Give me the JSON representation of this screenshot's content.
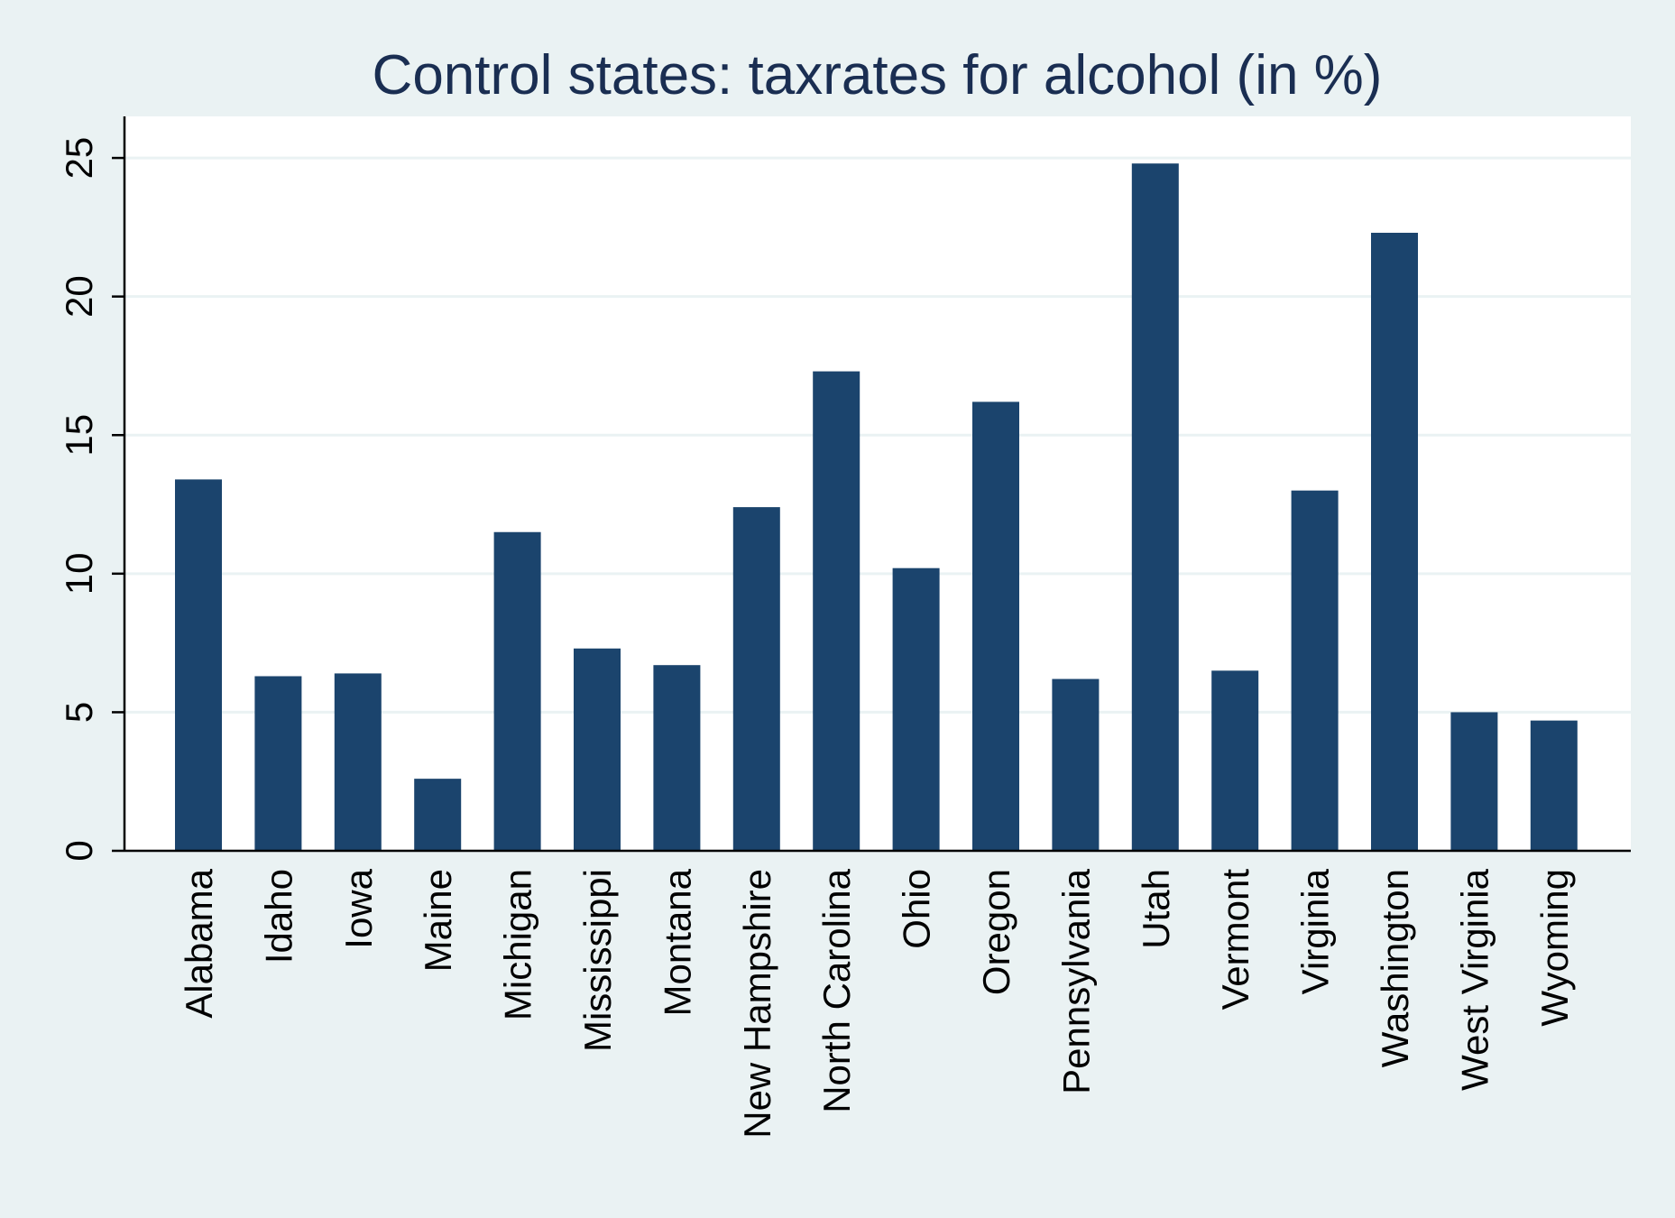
{
  "chart_data": {
    "type": "bar",
    "title": "Control states: taxrates for alcohol (in %)",
    "xlabel": "",
    "ylabel": "",
    "categories": [
      "Alabama",
      "Idaho",
      "Iowa",
      "Maine",
      "Michigan",
      "Mississippi",
      "Montana",
      "New Hampshire",
      "North Carolina",
      "Ohio",
      "Oregon",
      "Pennsylvania",
      "Utah",
      "Vermont",
      "Virginia",
      "Washington",
      "West Virginia",
      "Wyoming"
    ],
    "values": [
      13.4,
      6.3,
      6.4,
      2.6,
      11.5,
      7.3,
      6.7,
      12.4,
      17.3,
      10.2,
      16.2,
      6.2,
      24.8,
      6.5,
      13.0,
      22.3,
      5.0,
      4.7
    ],
    "ylim": [
      0,
      26.5
    ],
    "yticks": [
      0,
      5,
      10,
      15,
      20,
      25
    ],
    "grid": true,
    "legend": "none",
    "colors": {
      "bar": "#1b446d",
      "plot_background": "#ffffff",
      "outer_background": "#eaf2f3",
      "gridline": "#eaf2f3",
      "title": "#1a2e52"
    }
  }
}
